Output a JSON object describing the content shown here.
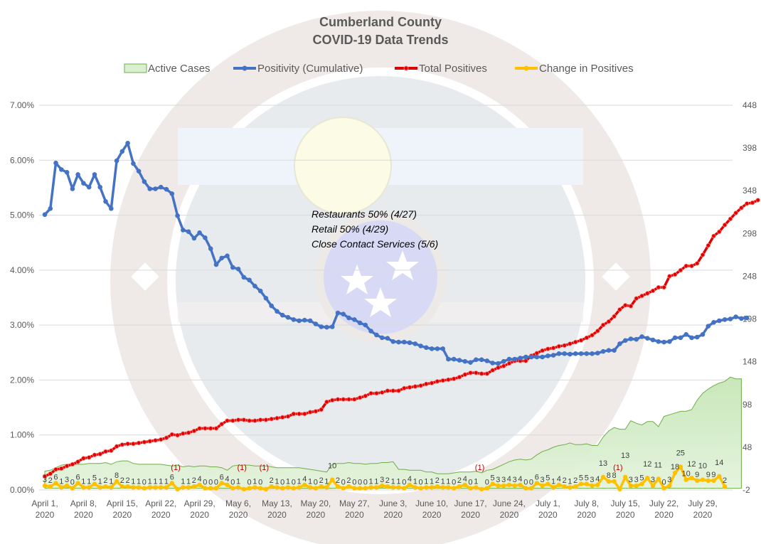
{
  "chart_data": {
    "type": "line",
    "title": "Cumberland County",
    "subtitle": "COVID-19 Data Trends",
    "legend": {
      "placement": "top",
      "entries": [
        {
          "name": "Active Cases",
          "kind": "area",
          "color": "#70ad47",
          "fill": "#d9efcf"
        },
        {
          "name": "Positivity (Cumulative)",
          "kind": "line",
          "color": "#4472c4"
        },
        {
          "name": "Total Positives",
          "kind": "line",
          "color": "#e00000"
        },
        {
          "name": "Change in Positives",
          "kind": "line",
          "color": "#ffc000"
        }
      ]
    },
    "y_left": {
      "label": "",
      "range": [
        0,
        0.07
      ],
      "ticks": [
        "0.00%",
        "1.00%",
        "2.00%",
        "3.00%",
        "4.00%",
        "5.00%",
        "6.00%",
        "7.00%"
      ],
      "tick_values": [
        0,
        0.01,
        0.02,
        0.03,
        0.04,
        0.05,
        0.06,
        0.07
      ]
    },
    "y_right": {
      "label": "",
      "range": [
        -2,
        448
      ],
      "ticks": [
        "-2",
        "48",
        "98",
        "148",
        "198",
        "248",
        "298",
        "348",
        "398",
        "448"
      ],
      "tick_values": [
        -2,
        48,
        98,
        148,
        198,
        248,
        298,
        348,
        398,
        448
      ]
    },
    "x": {
      "start": "2020-04-01",
      "days": 125,
      "tick_labels": [
        [
          "April 1,",
          "2020"
        ],
        [
          "April 8,",
          "2020"
        ],
        [
          "April 15,",
          "2020"
        ],
        [
          "April 22,",
          "2020"
        ],
        [
          "April 29,",
          "2020"
        ],
        [
          "May 6,",
          "2020"
        ],
        [
          "May 13,",
          "2020"
        ],
        [
          "May 20,",
          "2020"
        ],
        [
          "May 27,",
          "2020"
        ],
        [
          "June 3,",
          "2020"
        ],
        [
          "June 10,",
          "2020"
        ],
        [
          "June 17,",
          "2020"
        ],
        [
          "June 24,",
          "2020"
        ],
        [
          "July 1,",
          "2020"
        ],
        [
          "July 8,",
          "2020"
        ],
        [
          "July 15,",
          "2020"
        ],
        [
          "July 22,",
          "2020"
        ],
        [
          "July 29,",
          "2020"
        ]
      ],
      "tick_step_days": 7
    },
    "grid": true,
    "annotations": [
      "Restaurants 50% (4/27)",
      "Retail 50% (4/29)",
      "Close Contact Services (5/6)"
    ],
    "series": [
      {
        "name": "Positivity (Cumulative)",
        "axis": "left",
        "values": [
          0.0501,
          0.0512,
          0.0595,
          0.0583,
          0.0578,
          0.0548,
          0.0574,
          0.0558,
          0.0551,
          0.0574,
          0.0551,
          0.0525,
          0.0512,
          0.0599,
          0.0616,
          0.0631,
          0.0594,
          0.058,
          0.0561,
          0.0548,
          0.0548,
          0.0551,
          0.0547,
          0.0539,
          0.0499,
          0.0473,
          0.047,
          0.0458,
          0.0468,
          0.0459,
          0.0439,
          0.041,
          0.0422,
          0.0426,
          0.0405,
          0.0402,
          0.0387,
          0.0382,
          0.0371,
          0.0362,
          0.0349,
          0.0335,
          0.0325,
          0.0318,
          0.0314,
          0.031,
          0.0308,
          0.0309,
          0.0308,
          0.0302,
          0.0297,
          0.0296,
          0.0297,
          0.0322,
          0.032,
          0.0313,
          0.031,
          0.0304,
          0.03,
          0.0289,
          0.0282,
          0.0277,
          0.0276,
          0.027,
          0.0269,
          0.0269,
          0.0268,
          0.0266,
          0.0262,
          0.0259,
          0.0257,
          0.0257,
          0.0257,
          0.0238,
          0.0238,
          0.0236,
          0.0234,
          0.0232,
          0.0237,
          0.0237,
          0.0235,
          0.0231,
          0.023,
          0.0234,
          0.0238,
          0.0238,
          0.024,
          0.0242,
          0.0242,
          0.0242,
          0.0242,
          0.0244,
          0.0245,
          0.0248,
          0.0248,
          0.0247,
          0.0248,
          0.0248,
          0.0248,
          0.0248,
          0.0249,
          0.0252,
          0.0254,
          0.0254,
          0.0266,
          0.0272,
          0.0275,
          0.0274,
          0.0279,
          0.0276,
          0.0273,
          0.027,
          0.0269,
          0.027,
          0.0277,
          0.0277,
          0.0283,
          0.0277,
          0.0278,
          0.0283,
          0.0298,
          0.0305,
          0.0308,
          0.031,
          0.0311,
          0.0315,
          0.0312,
          0.0313
        ]
      },
      {
        "name": "Total Positives",
        "axis": "right",
        "values": [
          14,
          17,
          22,
          23,
          26,
          28,
          31,
          35,
          36,
          39,
          40,
          43,
          44,
          49,
          51,
          52,
          52,
          53,
          54,
          55,
          56,
          57,
          59,
          63,
          62,
          64,
          65,
          67,
          70,
          70,
          70,
          70,
          75,
          79,
          79,
          80,
          80,
          79,
          79,
          80,
          80,
          81,
          82,
          83,
          84,
          87,
          87,
          87,
          89,
          90,
          92,
          101,
          103,
          104,
          104,
          104,
          104,
          106,
          108,
          111,
          111,
          112,
          114,
          114,
          114,
          117,
          118,
          119,
          120,
          122,
          123,
          125,
          126,
          127,
          128,
          130,
          133,
          135,
          135,
          134,
          134,
          138,
          141,
          143,
          146,
          149,
          149,
          149,
          155,
          158,
          161,
          163,
          164,
          166,
          167,
          169,
          171,
          173,
          176,
          179,
          184,
          191,
          195,
          201,
          209,
          214,
          213,
          222,
          225,
          228,
          231,
          235,
          235,
          248,
          250,
          255,
          260,
          260,
          263,
          273,
          284,
          295,
          300,
          308,
          315,
          322,
          328,
          333,
          334,
          337
        ]
      },
      {
        "name": "Active Cases",
        "axis": "right",
        "values": [
          20,
          21,
          24,
          27,
          28,
          28,
          28,
          28,
          29,
          29,
          29,
          30,
          28,
          31,
          32,
          32,
          29,
          28,
          28,
          28,
          28,
          28,
          27,
          26,
          27,
          25,
          26,
          25,
          26,
          26,
          25,
          25,
          24,
          21,
          26,
          27,
          27,
          27,
          26,
          26,
          26,
          25,
          24,
          24,
          24,
          24,
          24,
          23,
          22,
          21,
          20,
          19,
          28,
          29,
          29,
          30,
          29,
          29,
          28,
          29,
          29,
          30,
          30,
          31,
          22,
          22,
          21,
          21,
          21,
          19,
          19,
          17,
          17,
          17,
          18,
          19,
          19,
          19,
          20,
          18,
          21,
          22,
          25,
          28,
          31,
          33,
          34,
          33,
          34,
          39,
          43,
          45,
          48,
          50,
          51,
          53,
          51,
          51,
          52,
          50,
          50,
          60,
          67,
          71,
          69,
          69,
          79,
          76,
          74,
          78,
          78,
          72,
          84,
          86,
          88,
          90,
          90,
          92,
          103,
          111,
          116,
          120,
          123,
          125,
          130,
          128,
          128
        ]
      },
      {
        "name": "Change in Positives",
        "axis": "right",
        "values": [
          3,
          2,
          6,
          1,
          3,
          0,
          6,
          1,
          1,
          5,
          1,
          2,
          1,
          8,
          2,
          2,
          1,
          1,
          0,
          1,
          1,
          1,
          1,
          6,
          -1,
          1,
          1,
          2,
          4,
          0,
          0,
          0,
          6,
          4,
          0,
          1,
          -1,
          0,
          1,
          0,
          -1,
          2,
          1,
          0,
          1,
          0,
          1,
          4,
          1,
          0,
          2,
          1,
          10,
          2,
          0,
          2,
          0,
          0,
          0,
          1,
          1,
          3,
          2,
          1,
          1,
          0,
          4,
          1,
          0,
          1,
          1,
          2,
          1,
          1,
          0,
          2,
          4,
          0,
          1,
          -1,
          0,
          5,
          3,
          3,
          4,
          3,
          4,
          0,
          0,
          6,
          3,
          5,
          1,
          4,
          2,
          1,
          2,
          5,
          5,
          3,
          4,
          13,
          8,
          8,
          -1,
          13,
          3,
          3,
          5,
          12,
          3,
          11,
          0,
          3,
          18,
          25,
          10,
          12,
          9,
          10,
          9,
          9,
          14,
          2
        ]
      }
    ],
    "data_labels": {
      "series": "Change in Positives",
      "negative_format": "(n)",
      "negative_color": "#c00000"
    }
  }
}
